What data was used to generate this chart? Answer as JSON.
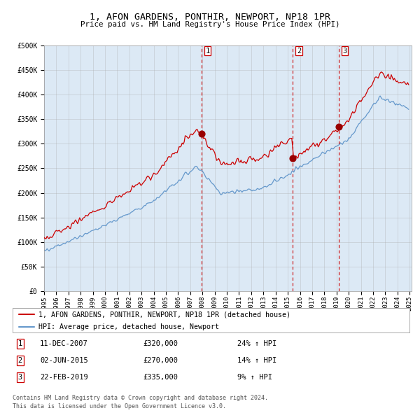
{
  "title": "1, AFON GARDENS, PONTHIR, NEWPORT, NP18 1PR",
  "subtitle": "Price paid vs. HM Land Registry's House Price Index (HPI)",
  "red_label": "1, AFON GARDENS, PONTHIR, NEWPORT, NP18 1PR (detached house)",
  "blue_label": "HPI: Average price, detached house, Newport",
  "sale_dates": [
    "2007-12-11",
    "2015-06-02",
    "2019-02-22"
  ],
  "sale_prices": [
    320000,
    270000,
    335000
  ],
  "sale_labels": [
    "1",
    "2",
    "3"
  ],
  "sale_annotations": [
    "11-DEC-2007",
    "02-JUN-2015",
    "22-FEB-2019"
  ],
  "sale_amounts": [
    "£320,000",
    "£270,000",
    "£335,000"
  ],
  "sale_hpi_changes": [
    "24% ↑ HPI",
    "14% ↑ HPI",
    "9% ↑ HPI"
  ],
  "ylim": [
    0,
    500000
  ],
  "yticks": [
    0,
    50000,
    100000,
    150000,
    200000,
    250000,
    300000,
    350000,
    400000,
    450000,
    500000
  ],
  "background_color": "#ffffff",
  "plot_bg_color": "#dce9f5",
  "grid_color": "#aaaaaa",
  "red_color": "#cc0000",
  "blue_color": "#6699cc",
  "dot_color": "#990000",
  "vline_color": "#cc0000",
  "footnote": "Contains HM Land Registry data © Crown copyright and database right 2024.\nThis data is licensed under the Open Government Licence v3.0."
}
